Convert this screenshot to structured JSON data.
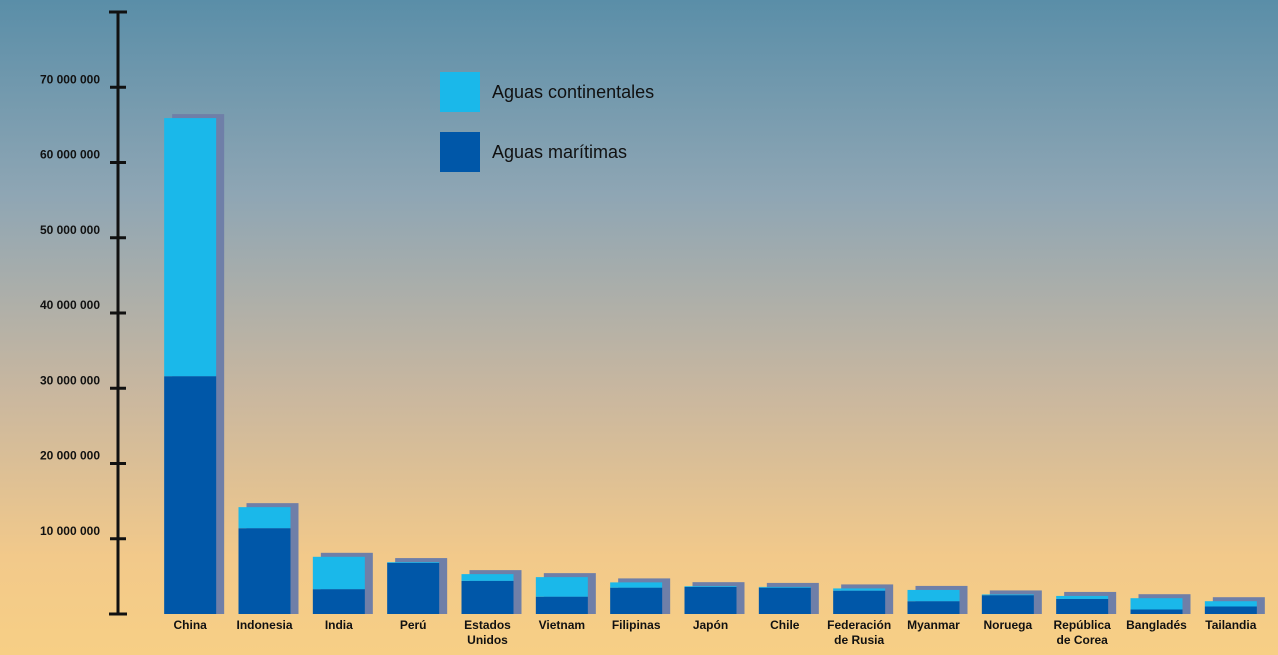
{
  "chart_data": {
    "type": "stacked-bar",
    "categories": [
      "China",
      "Indonesia",
      "India",
      "Perú",
      "Estados Unidos",
      "Vietnam",
      "Filipinas",
      "Japón",
      "Chile",
      "Federación de Rusia",
      "Myanmar",
      "Noruega",
      "República de Corea",
      "Bangladés",
      "Tailandia"
    ],
    "series": [
      {
        "name": "Aguas marítimas",
        "color": "#0057a8",
        "values": [
          31600000,
          11400000,
          3300000,
          6800000,
          4400000,
          2300000,
          3500000,
          3600000,
          3500000,
          3100000,
          1700000,
          2500000,
          2000000,
          600000,
          1000000
        ]
      },
      {
        "name": "Aguas continentales",
        "color": "#1ab8ea",
        "values": [
          34300000,
          2800000,
          4300000,
          100000,
          900000,
          2600000,
          700000,
          100000,
          100000,
          300000,
          1500000,
          100000,
          400000,
          1500000,
          700000
        ]
      }
    ],
    "ylim": [
      0,
      80000000
    ],
    "yticks": [
      {
        "value": 10000000,
        "label": "10 000 000"
      },
      {
        "value": 20000000,
        "label": "20 000 000"
      },
      {
        "value": 30000000,
        "label": "30 000 000"
      },
      {
        "value": 40000000,
        "label": "40 000 000"
      },
      {
        "value": 50000000,
        "label": "50 000 000"
      },
      {
        "value": 60000000,
        "label": "60 000 000"
      },
      {
        "value": 70000000,
        "label": "70 000 000"
      }
    ]
  }
}
